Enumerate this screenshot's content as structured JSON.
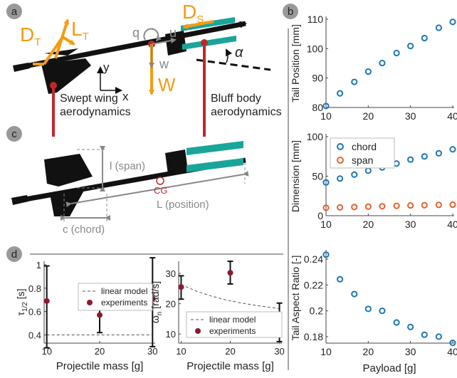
{
  "panels": {
    "a": "a",
    "b": "b",
    "c": "c",
    "d": "d"
  },
  "panel_a": {
    "forces": {
      "drag_tail": "D",
      "drag_tail_sub": "T",
      "lift_tail": "L",
      "lift_tail_sub": "T",
      "drag_sail": "D",
      "drag_sail_sub": "S",
      "weight": "W",
      "pitch_rate": "q",
      "velocity_u": "u",
      "velocity_w": "w",
      "angle": "α"
    },
    "axes": {
      "x": "x",
      "y": "y"
    },
    "labels": {
      "swept_line1": "Swept wing",
      "swept_line2": "aerodynamics",
      "bluff_line1": "Bluff body",
      "bluff_line2": "aerodynamics"
    }
  },
  "panel_c": {
    "span": "l (span)",
    "cg": "CG",
    "position": "L (position)",
    "chord": "c (chord)"
  },
  "colors": {
    "orange_force": "#f39c12",
    "teal_fin": "#1aa59b",
    "red_marker": "#c0272d",
    "blue_series": "#1f77b4",
    "orange_series": "#e6622c",
    "dark_red_points": "#8b1a2b",
    "axis_gray": "#888888"
  },
  "chart_data": [
    {
      "id": "tail_position",
      "type": "scatter",
      "x": [
        10,
        13.3,
        16.7,
        20,
        23.3,
        26.7,
        30,
        33.3,
        36.7,
        40
      ],
      "y": [
        80.5,
        84.8,
        88.7,
        92.2,
        95.1,
        98.5,
        100.9,
        103.6,
        107.1,
        109.1
      ],
      "ylabel": "Tail Position [mm]",
      "xlim": [
        10,
        40
      ],
      "ylim": [
        80,
        110
      ],
      "xticks": [
        "10",
        "20",
        "30",
        "40"
      ],
      "yticks": [
        "80",
        "90",
        "100",
        "110"
      ]
    },
    {
      "id": "dimension",
      "type": "scatter",
      "x": [
        10,
        13.3,
        16.7,
        20,
        23.3,
        26.7,
        30,
        33.3,
        36.7,
        40
      ],
      "series": [
        {
          "name": "chord",
          "values": [
            42,
            47,
            52,
            57,
            61,
            66,
            71,
            75,
            79,
            84
          ]
        },
        {
          "name": "span",
          "values": [
            10,
            10.5,
            11,
            11.5,
            12,
            12.5,
            13,
            13.3,
            13.7,
            14
          ]
        }
      ],
      "ylabel": "Dimension [mm]",
      "xlim": [
        10,
        40
      ],
      "ylim": [
        0,
        100
      ],
      "xticks": [
        "10",
        "20",
        "30",
        "40"
      ],
      "yticks": [
        "0",
        "50",
        "100"
      ],
      "legend": "top-left"
    },
    {
      "id": "aspect_ratio",
      "type": "scatter",
      "x": [
        10,
        13.3,
        16.7,
        20,
        23.3,
        26.7,
        30,
        33.3,
        36.7,
        40
      ],
      "y": [
        0.2435,
        0.2245,
        0.213,
        0.2015,
        0.2,
        0.191,
        0.1875,
        0.1815,
        0.18,
        0.1752
      ],
      "xlabel": "Payload [g]",
      "ylabel": "Tail Aspect Ratio [-]",
      "xlim": [
        10,
        40
      ],
      "ylim": [
        0.175,
        0.245
      ],
      "xticks": [
        "10",
        "20",
        "30",
        "40"
      ],
      "yticks": [
        "0.18",
        "0.2",
        "0.22",
        "0.24"
      ]
    },
    {
      "id": "tau_half",
      "type": "scatter",
      "x": [
        10,
        20,
        30
      ],
      "y": [
        0.69,
        0.57,
        0.71
      ],
      "err_low": [
        0.29,
        0.42,
        0.3
      ],
      "err_high": [
        0.99,
        0.7,
        1.06
      ],
      "model_x": [
        10,
        30
      ],
      "model_y": [
        0.4,
        0.4
      ],
      "series_names": [
        "linear model",
        "experiments"
      ],
      "xlabel": "Projectile mass [g]",
      "ylabel": "τ",
      "ylabel_sub": "1/2",
      "ylabel_unit": "[s]",
      "xlim": [
        9.5,
        30.5
      ],
      "ylim": [
        0.33,
        1.03
      ],
      "xticks": [
        "10",
        "20",
        "30"
      ],
      "yticks": [
        "0.4",
        "0.6",
        "0.8",
        "1"
      ],
      "legend": "top-right"
    },
    {
      "id": "omega_n",
      "type": "scatter",
      "x": [
        10,
        20,
        30
      ],
      "y": [
        25.5,
        30.2,
        13.8
      ],
      "err_low": [
        21.5,
        26.5,
        7.5
      ],
      "err_high": [
        29.2,
        34.0,
        20.2
      ],
      "model_x": [
        10,
        13,
        16,
        19,
        22,
        25,
        28,
        30
      ],
      "model_y": [
        26.3,
        24.2,
        22.6,
        21.3,
        20.3,
        19.5,
        18.8,
        18.4
      ],
      "series_names": [
        "linear model",
        "experiments"
      ],
      "xlabel": "Projectile mass [g]",
      "ylabel": "ω",
      "ylabel_sub": "n",
      "ylabel_unit": "[rad/s]",
      "xlim": [
        9.5,
        30.5
      ],
      "ylim": [
        7.0,
        34.0
      ],
      "xticks": [
        "10",
        "20",
        "30"
      ],
      "yticks": [
        "10",
        "20",
        "30"
      ],
      "legend": "bottom-right"
    }
  ]
}
